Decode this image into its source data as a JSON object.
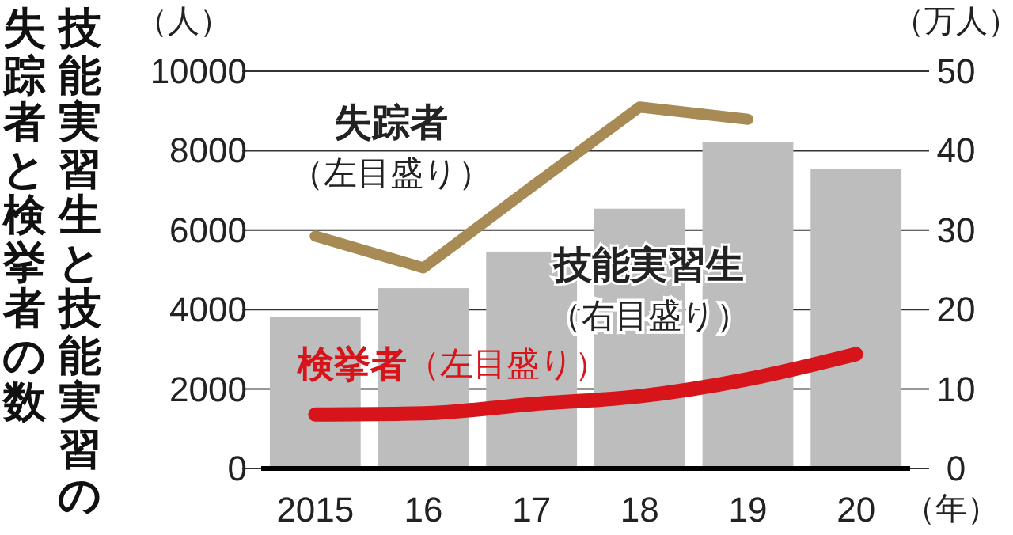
{
  "chart_data": {
    "type": "bar",
    "title": "技能実習生と技能実習の失踪者と検挙者の数",
    "ylabel": "（人）",
    "y2label": "（万人）",
    "xlabel": "（年）",
    "categories": [
      "2015",
      "16",
      "17",
      "18",
      "19",
      "20"
    ],
    "series": [
      {
        "name": "技能実習生",
        "axis": "y2",
        "color": "#bdbdbd",
        "values": [
          19.1,
          22.7,
          27.3,
          32.7,
          41.1,
          37.7
        ]
      },
      {
        "name": "失踪者",
        "type": "line",
        "color": "#a88a55",
        "values": [
          5850,
          5050,
          7090,
          9100,
          8790,
          null
        ]
      },
      {
        "name": "検挙者",
        "type": "line",
        "color": "#d7141a",
        "values": [
          1360,
          1390,
          1620,
          1820,
          2250,
          2880
        ]
      }
    ],
    "annotations": [
      "（右目盛り）",
      "（左目盛り）",
      "（左目盛り）"
    ],
    "ylim": [
      0,
      10000
    ],
    "yticks": [
      0,
      2000,
      4000,
      6000,
      8000,
      10000
    ],
    "y2lim": [
      0,
      50
    ],
    "y2ticks": [
      0,
      10,
      20,
      30,
      40,
      50
    ],
    "grid": "y",
    "legend": false
  }
}
